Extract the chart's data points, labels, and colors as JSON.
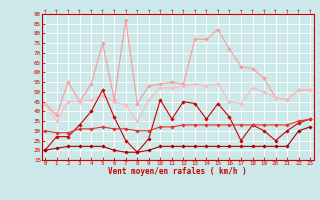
{
  "x": [
    0,
    1,
    2,
    3,
    4,
    5,
    6,
    7,
    8,
    9,
    10,
    11,
    12,
    13,
    14,
    15,
    16,
    17,
    18,
    19,
    20,
    21,
    22,
    23
  ],
  "series": [
    {
      "name": "rafales_high",
      "color": "#ff9999",
      "lw": 0.8,
      "marker": "D",
      "markersize": 1.8,
      "y": [
        44,
        38,
        55,
        45,
        54,
        75,
        46,
        87,
        44,
        53,
        54,
        55,
        54,
        77,
        77,
        82,
        72,
        63,
        62,
        57,
        47,
        46,
        51,
        51
      ]
    },
    {
      "name": "moyen_high",
      "color": "#ffbbbb",
      "lw": 0.8,
      "marker": "D",
      "markersize": 1.8,
      "y": [
        44,
        35,
        45,
        45,
        46,
        48,
        45,
        43,
        35,
        46,
        52,
        52,
        53,
        54,
        53,
        54,
        45,
        44,
        52,
        50,
        47,
        46,
        51,
        51
      ]
    },
    {
      "name": "rafales_mid",
      "color": "#cc0000",
      "lw": 0.8,
      "marker": "D",
      "markersize": 1.8,
      "y": [
        20,
        27,
        27,
        33,
        40,
        51,
        37,
        25,
        19,
        26,
        46,
        36,
        45,
        44,
        36,
        44,
        37,
        25,
        33,
        30,
        25,
        30,
        34,
        36
      ]
    },
    {
      "name": "moyen_mid",
      "color": "#dd3333",
      "lw": 0.8,
      "marker": "D",
      "markersize": 1.8,
      "y": [
        30,
        29,
        29,
        31,
        31,
        32,
        31,
        31,
        30,
        30,
        32,
        32,
        33,
        33,
        33,
        33,
        33,
        33,
        33,
        33,
        33,
        33,
        35,
        36
      ]
    },
    {
      "name": "vent_low",
      "color": "#aa0000",
      "lw": 0.8,
      "marker": "D",
      "markersize": 1.8,
      "y": [
        20,
        21,
        22,
        22,
        22,
        22,
        20,
        19,
        19,
        20,
        22,
        22,
        22,
        22,
        22,
        22,
        22,
        22,
        22,
        22,
        22,
        22,
        30,
        32
      ]
    }
  ],
  "ylim": [
    15,
    90
  ],
  "yticks": [
    15,
    20,
    25,
    30,
    35,
    40,
    45,
    50,
    55,
    60,
    65,
    70,
    75,
    80,
    85,
    90
  ],
  "xlim": [
    -0.3,
    23.3
  ],
  "xticks": [
    0,
    1,
    2,
    3,
    4,
    5,
    6,
    7,
    8,
    9,
    10,
    11,
    12,
    13,
    14,
    15,
    16,
    17,
    18,
    19,
    20,
    21,
    22,
    23
  ],
  "xlabel": "Vent moyen/en rafales ( km/h )",
  "bgcolor": "#cce8e8",
  "grid_color": "#aacccc",
  "axis_color": "#cc0000",
  "tick_color": "#cc0000",
  "label_color": "#cc0000"
}
